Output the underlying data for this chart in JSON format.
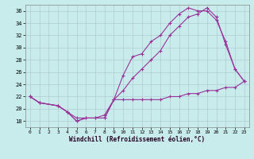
{
  "xlabel": "Windchill (Refroidissement éolien,°C)",
  "bg_color": "#c8ecec",
  "grid_color": "#b0ccd4",
  "line_color": "#993399",
  "xlim": [
    -0.5,
    23.5
  ],
  "ylim": [
    17,
    37
  ],
  "yticks": [
    18,
    20,
    22,
    24,
    26,
    28,
    30,
    32,
    34,
    36
  ],
  "xticks": [
    0,
    1,
    2,
    3,
    4,
    5,
    6,
    7,
    8,
    9,
    10,
    11,
    12,
    13,
    14,
    15,
    16,
    17,
    18,
    19,
    20,
    21,
    22,
    23
  ],
  "line1_x": [
    0,
    1,
    3,
    4,
    5,
    6,
    7,
    8,
    9,
    10,
    11,
    12,
    13,
    14,
    15,
    16,
    17,
    18,
    19,
    20,
    21,
    22,
    23
  ],
  "line1_y": [
    22,
    21,
    20.5,
    19.5,
    18.0,
    18.5,
    18.5,
    18.5,
    21.5,
    21.5,
    21.5,
    21.5,
    21.5,
    21.5,
    22.0,
    22.0,
    22.5,
    22.5,
    23.0,
    23.0,
    23.5,
    23.5,
    24.5
  ],
  "line2_x": [
    0,
    1,
    3,
    4,
    5,
    6,
    7,
    8,
    9,
    10,
    11,
    12,
    13,
    14,
    15,
    16,
    17,
    18,
    19,
    20,
    21,
    22,
    23
  ],
  "line2_y": [
    22,
    21,
    20.5,
    19.5,
    18.0,
    18.5,
    18.5,
    19.0,
    21.5,
    25.5,
    28.5,
    29.0,
    31.0,
    32.0,
    34.0,
    35.5,
    36.5,
    36.0,
    36.0,
    34.5,
    31.0,
    26.5,
    24.5
  ],
  "line3_x": [
    0,
    1,
    3,
    4,
    5,
    8,
    9,
    10,
    11,
    12,
    13,
    14,
    15,
    16,
    17,
    18,
    19,
    20,
    21,
    22,
    23
  ],
  "line3_y": [
    22,
    21,
    20.5,
    19.5,
    18.5,
    18.5,
    21.5,
    23.0,
    25.0,
    26.5,
    28.0,
    29.5,
    32.0,
    33.5,
    35.0,
    35.5,
    36.5,
    35.0,
    30.5,
    26.5,
    24.5
  ]
}
